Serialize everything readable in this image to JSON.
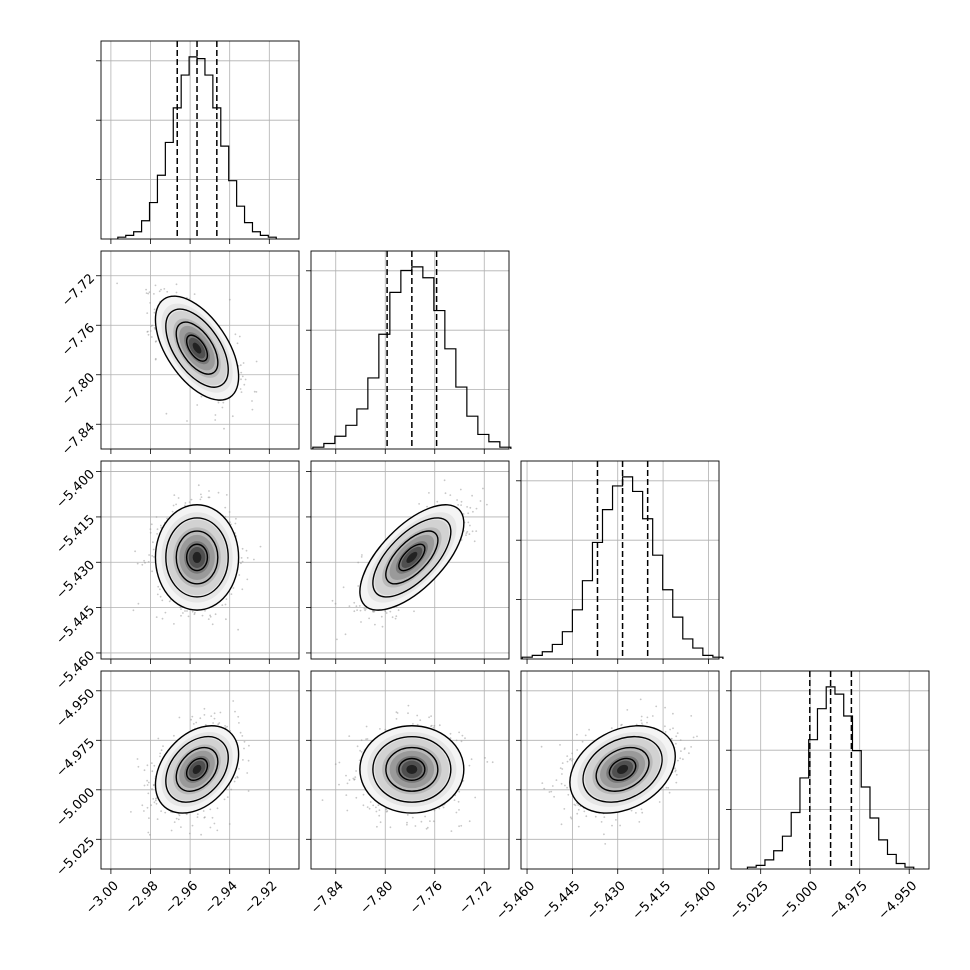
{
  "chart_data": {
    "type": "corner",
    "title": "",
    "params": [
      {
        "name": "",
        "range": [
          -3.005,
          -2.905
        ],
        "ticks": [
          -3.0,
          -2.98,
          -2.96,
          -2.94,
          -2.92
        ],
        "tick_labels": [
          "−3.00",
          "−2.98",
          "−2.96",
          "−2.94",
          "−2.92"
        ],
        "quantiles": [
          -2.9665,
          -2.9565,
          -2.9465
        ],
        "median": -2.9565,
        "sigma": 0.01
      },
      {
        "name": "",
        "range": [
          -7.86,
          -7.7
        ],
        "ticks": [
          -7.84,
          -7.8,
          -7.76,
          -7.72
        ],
        "tick_labels": [
          "−7.84",
          "−7.80",
          "−7.76",
          "−7.72"
        ],
        "quantiles": [
          -7.7985,
          -7.7785,
          -7.7585
        ],
        "median": -7.7785,
        "sigma": 0.02
      },
      {
        "name": "",
        "range": [
          -5.462,
          -5.3965
        ],
        "ticks": [
          -5.46,
          -5.445,
          -5.43,
          -5.415,
          -5.4
        ],
        "tick_labels": [
          "−5.460",
          "−5.445",
          "−5.430",
          "−5.415",
          "−5.400"
        ],
        "quantiles": [
          -5.4367,
          -5.4284,
          -5.4201
        ],
        "median": -5.4284,
        "sigma": 0.0083
      },
      {
        "name": "",
        "range": [
          -5.04,
          -4.94
        ],
        "ticks": [
          -5.025,
          -5.0,
          -4.975,
          -4.95
        ],
        "tick_labels": [
          "−5.025",
          "−5.000",
          "−4.975",
          "−4.950"
        ],
        "quantiles": [
          -5.0002,
          -4.9897,
          -4.9792
        ],
        "median": -4.9897,
        "sigma": 0.0105
      }
    ],
    "histograms": [
      {
        "param": 0,
        "counts": [
          1,
          2,
          4,
          10,
          20,
          35,
          53,
          72,
          90,
          100,
          99,
          90,
          72,
          51,
          32,
          18,
          9,
          4,
          2,
          1
        ]
      },
      {
        "param": 1,
        "counts": [
          1,
          3,
          7,
          13,
          22,
          39,
          63,
          86,
          98,
          100,
          94,
          76,
          55,
          34,
          18,
          8,
          4,
          1
        ]
      },
      {
        "param": 2,
        "counts": [
          1,
          2,
          4,
          8,
          15,
          27,
          43,
          64,
          82,
          95,
          100,
          92,
          77,
          57,
          38,
          23,
          11,
          6,
          2,
          1
        ]
      },
      {
        "param": 3,
        "counts": [
          1,
          2,
          5,
          10,
          18,
          31,
          50,
          71,
          88,
          100,
          96,
          84,
          65,
          45,
          28,
          16,
          8,
          3,
          1
        ]
      }
    ],
    "pairs": [
      {
        "x_param": 0,
        "y_param": 1,
        "correlation": -0.55
      },
      {
        "x_param": 0,
        "y_param": 2,
        "correlation": 0.0
      },
      {
        "x_param": 1,
        "y_param": 2,
        "correlation": 0.65
      },
      {
        "x_param": 0,
        "y_param": 3,
        "correlation": 0.35
      },
      {
        "x_param": 1,
        "y_param": 3,
        "correlation": 0.0
      },
      {
        "x_param": 2,
        "y_param": 3,
        "correlation": 0.3
      }
    ],
    "contour_levels_sigma": [
      0.5,
      1.0,
      1.5,
      2.0
    ],
    "quantile_line_style": "dashed",
    "grid": true
  }
}
